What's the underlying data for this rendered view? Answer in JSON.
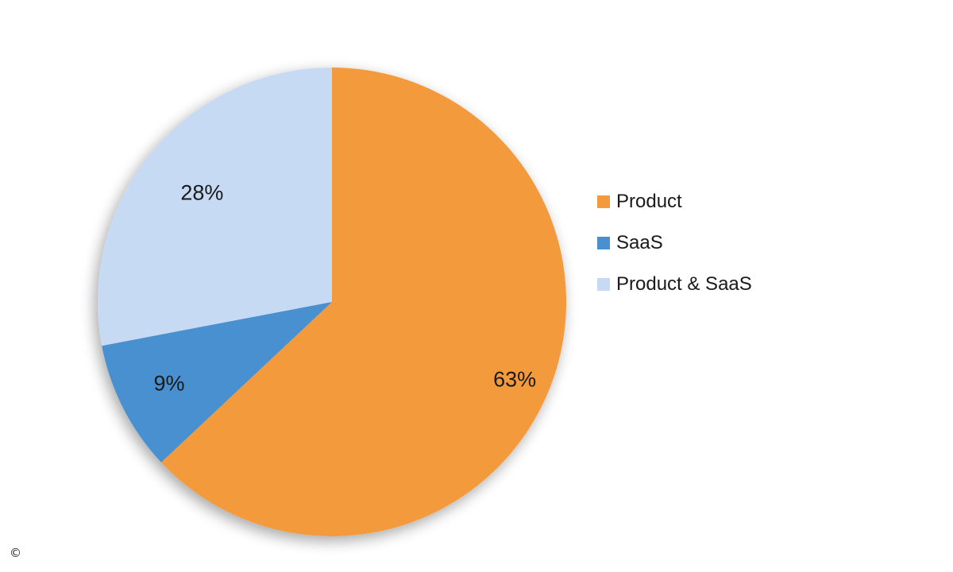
{
  "chart_data": {
    "type": "pie",
    "title": "",
    "slices": [
      {
        "name": "Product",
        "value": 63,
        "label": "63%",
        "color": "#F39A3E"
      },
      {
        "name": "SaaS",
        "value": 9,
        "label": "9%",
        "color": "#4A90D0"
      },
      {
        "name": "Product & SaaS",
        "value": 28,
        "label": "28%",
        "color": "#C6DAF3"
      }
    ],
    "start_angle_deg": 0,
    "direction": "clockwise",
    "legend": {
      "position": "right",
      "items": [
        {
          "label": "Product",
          "color": "#F39A3E"
        },
        {
          "label": "SaaS",
          "color": "#4A90D0"
        },
        {
          "label": "Product & SaaS",
          "color": "#C6DAF3"
        }
      ]
    }
  },
  "footer": {
    "copyright_symbol": "©"
  }
}
